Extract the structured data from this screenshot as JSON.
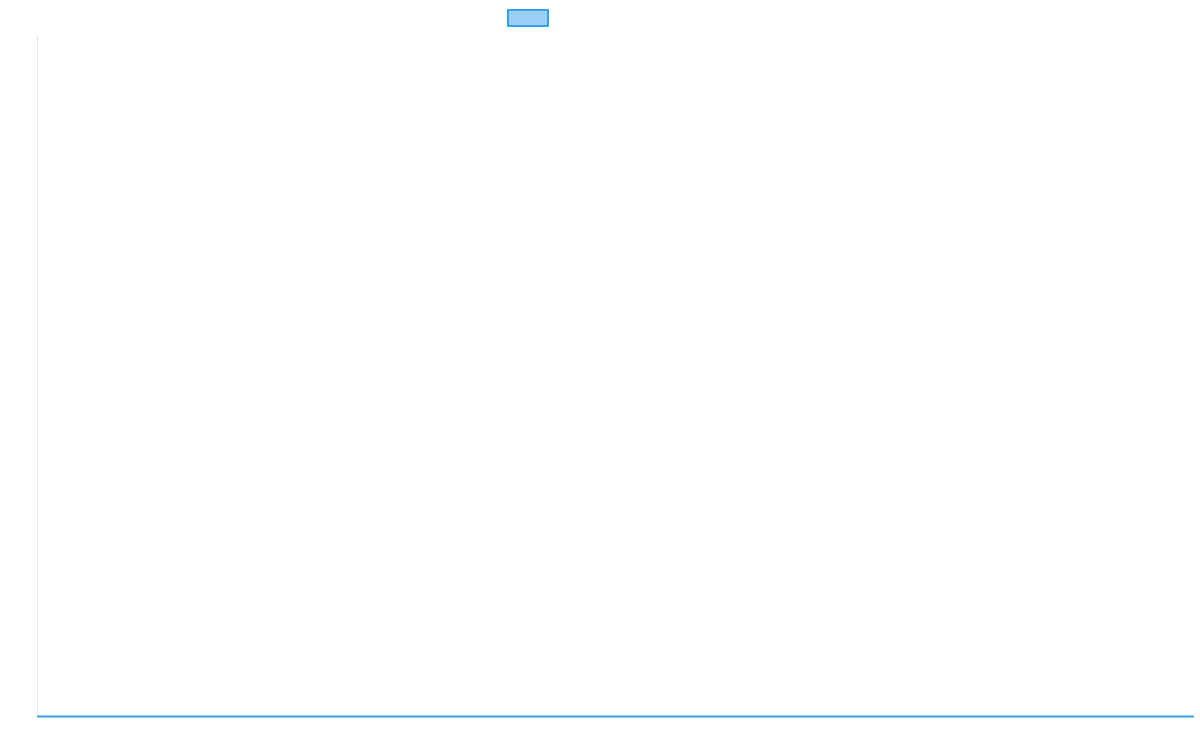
{
  "chart_data": {
    "type": "line",
    "title": "",
    "xlabel": "",
    "ylabel": "",
    "legend_placement": "top",
    "grid": false,
    "series": [
      {
        "color": "#36a2eb",
        "fill_color": "#9ad0f5",
        "values": []
      }
    ]
  }
}
